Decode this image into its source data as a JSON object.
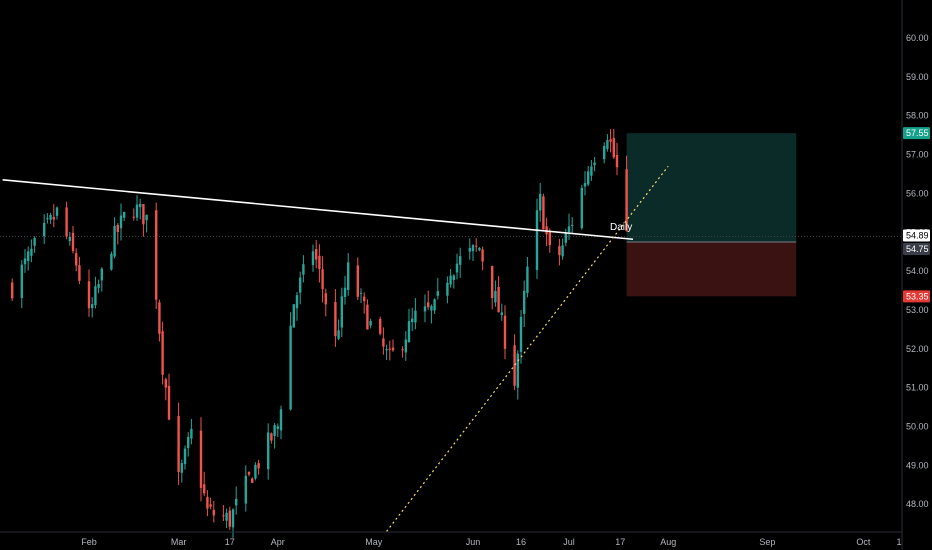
{
  "chart_data": {
    "type": "candlestick",
    "timeframe_label": "Daily",
    "colors": {
      "background": "#000000",
      "up": "#26a69a",
      "down": "#ef5350",
      "axis_text": "#b2b5be",
      "trendline": "#ffffff",
      "support": "#f5d76e",
      "profit_zone": "#0b2b28",
      "loss_zone": "#3a1212",
      "target_badge": "#15a08a",
      "stop_badge": "#e53935",
      "current_badge": "#ffffff",
      "entry_badge": "#3a3e48"
    },
    "y_ticks": [
      "60.00",
      "59.00",
      "58.00",
      "57.00",
      "56.00",
      "55.00",
      "54.00",
      "53.00",
      "52.00",
      "51.00",
      "50.00",
      "49.00",
      "48.00"
    ],
    "x_ticks": [
      "Feb",
      "Mar",
      "17",
      "Apr",
      "May",
      "Jun",
      "16",
      "Jul",
      "17",
      "Aug",
      "Sep",
      "Oct",
      "1"
    ],
    "ylim": [
      47.3,
      61.0
    ],
    "price_labels": {
      "target": "57.55",
      "current": "54.89",
      "entry": "54.75",
      "stop": "53.35"
    },
    "trendline": {
      "start": {
        "date": "Jan 5",
        "price": 56.35
      },
      "end": {
        "date": "Jul 21",
        "price": 54.82
      }
    },
    "support_line": {
      "start": {
        "date": "May 5",
        "price": 47.3
      },
      "end": {
        "date": "Aug 1",
        "price": 56.7
      }
    },
    "position": {
      "entry": 54.75,
      "target": 57.55,
      "stop": 53.35,
      "start": "Jul 19",
      "end": "Sep 10"
    },
    "keypoints": [
      [
        "Jan 8",
        53.6
      ],
      [
        "Jan 15",
        54.6
      ],
      [
        "Jan 22",
        55.5
      ],
      [
        "Jan 28",
        54.2
      ],
      [
        "Feb 1",
        52.8
      ],
      [
        "Feb 8",
        54.7
      ],
      [
        "Feb 14",
        55.7
      ],
      [
        "Feb 20",
        55.3
      ],
      [
        "Feb 24",
        51.6
      ],
      [
        "Mar 1",
        48.6
      ],
      [
        "Mar 5",
        49.8
      ],
      [
        "Mar 10",
        47.8
      ],
      [
        "Mar 17",
        47.6
      ],
      [
        "Mar 24",
        48.8
      ],
      [
        "Apr 1",
        50.0
      ],
      [
        "Apr 6",
        53.2
      ],
      [
        "Apr 12",
        54.6
      ],
      [
        "Apr 19",
        52.2
      ],
      [
        "Apr 23",
        54.0
      ],
      [
        "May 1",
        52.4
      ],
      [
        "May 6",
        51.7
      ],
      [
        "May 14",
        52.8
      ],
      [
        "May 20",
        53.0
      ],
      [
        "May 25",
        54.1
      ],
      [
        "Jun 3",
        54.6
      ],
      [
        "Jun 9",
        53.0
      ],
      [
        "Jun 14",
        51.2
      ],
      [
        "Jun 18",
        54.0
      ],
      [
        "Jun 22",
        55.8
      ],
      [
        "Jun 26",
        54.0
      ],
      [
        "Jul 2",
        55.3
      ],
      [
        "Jul 8",
        56.9
      ],
      [
        "Jul 13",
        57.6
      ],
      [
        "Jul 16",
        56.6
      ],
      [
        "Jul 19",
        54.75
      ]
    ]
  }
}
